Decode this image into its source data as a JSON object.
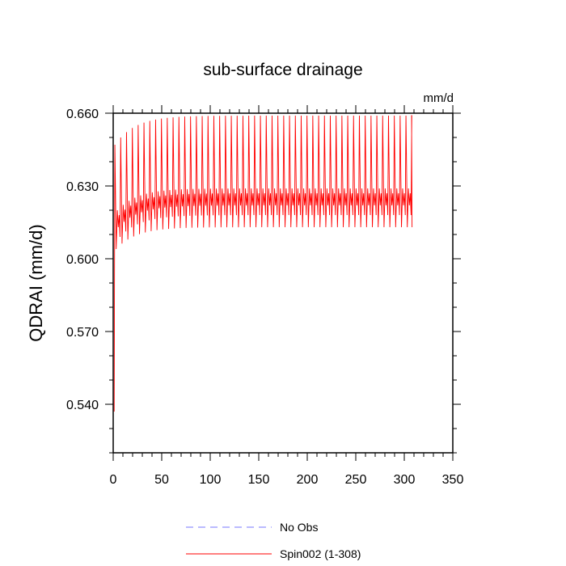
{
  "chart_data": {
    "type": "line",
    "title": "sub-surface drainage",
    "units_label": "mm/d",
    "ylabel": "QDRAI  (mm/d)",
    "xlabel": "",
    "xlim": [
      0,
      350
    ],
    "ylim": [
      0.52,
      0.66
    ],
    "x_ticks": [
      0,
      50,
      100,
      150,
      200,
      250,
      300,
      350
    ],
    "y_ticks": [
      "0.540",
      "0.570",
      "0.600",
      "0.630",
      "0.660"
    ],
    "grid": false,
    "series": [
      {
        "name": "Spin002 (1-308)",
        "color": "#ff0000",
        "style": "solid",
        "x_range": [
          1,
          308
        ],
        "cycle_length": 6,
        "start_value": 0.537,
        "first_cycle_peak": 0.647,
        "first_cycle_trough": 0.604,
        "spinup_peak": 0.659,
        "spinup_trough": 0.613,
        "spinup_mid": 0.625,
        "final_value": 0.613
      },
      {
        "name": "No Obs",
        "color": "#7777ff",
        "style": "dashed",
        "values": []
      }
    ],
    "legend": {
      "position": "bottom-center",
      "entries": [
        {
          "label": "No Obs",
          "color": "#7777ff",
          "style": "dashed"
        },
        {
          "label": "Spin002 (1-308)",
          "color": "#ff0000",
          "style": "solid"
        }
      ]
    }
  }
}
